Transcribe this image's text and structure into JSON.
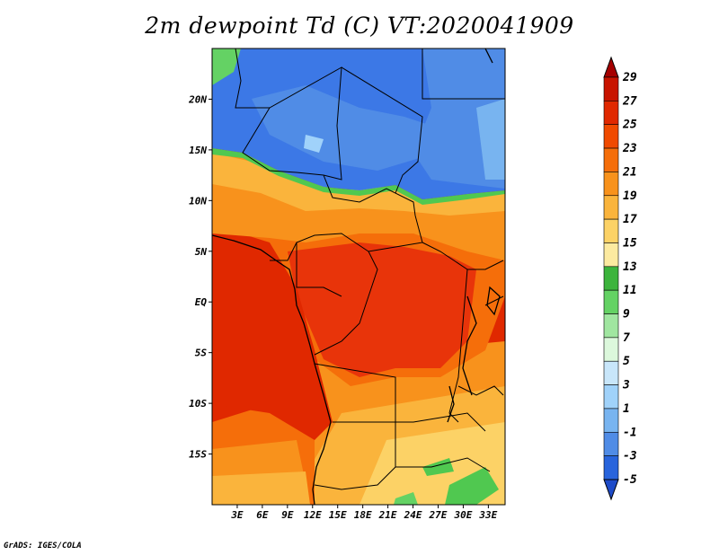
{
  "title": "2m dewpoint Td (C) VT:2020041909",
  "credit": "GrADS: IGES/COLA",
  "map": {
    "lon_range": [
      0,
      35
    ],
    "lat_range": [
      -20,
      25
    ],
    "lat_ticks": [
      {
        "value": 20,
        "label": "20N"
      },
      {
        "value": 15,
        "label": "15N"
      },
      {
        "value": 10,
        "label": "10N"
      },
      {
        "value": 5,
        "label": "5N"
      },
      {
        "value": 0,
        "label": "EQ"
      },
      {
        "value": -5,
        "label": "5S"
      },
      {
        "value": -10,
        "label": "10S"
      },
      {
        "value": -15,
        "label": "15S"
      }
    ],
    "lon_ticks": [
      {
        "value": 3,
        "label": "3E"
      },
      {
        "value": 6,
        "label": "6E"
      },
      {
        "value": 9,
        "label": "9E"
      },
      {
        "value": 12,
        "label": "12E"
      },
      {
        "value": 15,
        "label": "15E"
      },
      {
        "value": 18,
        "label": "18E"
      },
      {
        "value": 21,
        "label": "21E"
      },
      {
        "value": 24,
        "label": "24E"
      },
      {
        "value": 27,
        "label": "27E"
      },
      {
        "value": 30,
        "label": "30E"
      },
      {
        "value": 33,
        "label": "33E"
      }
    ]
  },
  "colorbar": {
    "labels": [
      "29",
      "27",
      "25",
      "23",
      "21",
      "19",
      "17",
      "15",
      "13",
      "11",
      "9",
      "7",
      "5",
      "3",
      "1",
      "-1",
      "-3",
      "-5"
    ],
    "colors": [
      "#a50000",
      "#c81400",
      "#e02800",
      "#f04a00",
      "#f56e0a",
      "#f8921c",
      "#fab43c",
      "#fcd266",
      "#fceaa0",
      "#3cb43c",
      "#64d264",
      "#a0e6a0",
      "#dcf8dc",
      "#c8e6fa",
      "#a0d2fa",
      "#78b4f0",
      "#508ce6",
      "#2864dc",
      "#1e4bc8"
    ]
  },
  "colors": {
    "ocean": "#e02800",
    "sahara_blue": "#3c78e6",
    "sahel_orange": "#f8921c",
    "central_red": "#e8340a",
    "south_yellow": "#fcd266",
    "green": "#50c850"
  }
}
